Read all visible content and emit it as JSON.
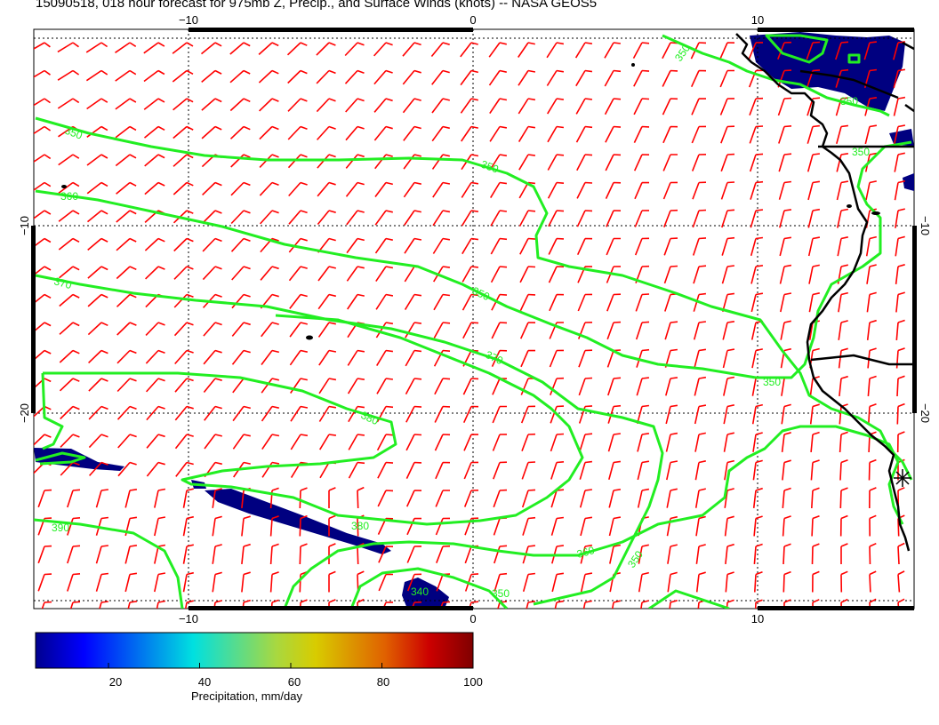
{
  "title": "15090518, 018 hour forecast for 975mb Z, Precip., and Surface Winds (knots) -- NASA GEOS5",
  "colors": {
    "contour": "#22ee22",
    "wind_barb": "#ff0000",
    "coastline": "#000000",
    "precip": "#000080"
  },
  "axes": {
    "x_ticks": [
      {
        "value": -10,
        "label": "−10"
      },
      {
        "value": 0,
        "label": "0"
      },
      {
        "value": 10,
        "label": "10"
      }
    ],
    "y_ticks": [
      {
        "value": -10,
        "label": "−10"
      },
      {
        "value": -20,
        "label": "−20"
      }
    ],
    "x_range": [
      -15.3,
      15.3
    ],
    "y_range": [
      -30.2,
      0
    ]
  },
  "contour_labels": [
    "350",
    "360",
    "370",
    "380",
    "390",
    "340"
  ],
  "colorbar": {
    "label": "Precipitation, mm/day",
    "ticks": [
      "20",
      "40",
      "60",
      "80",
      "100"
    ],
    "range": [
      4,
      100
    ]
  }
}
